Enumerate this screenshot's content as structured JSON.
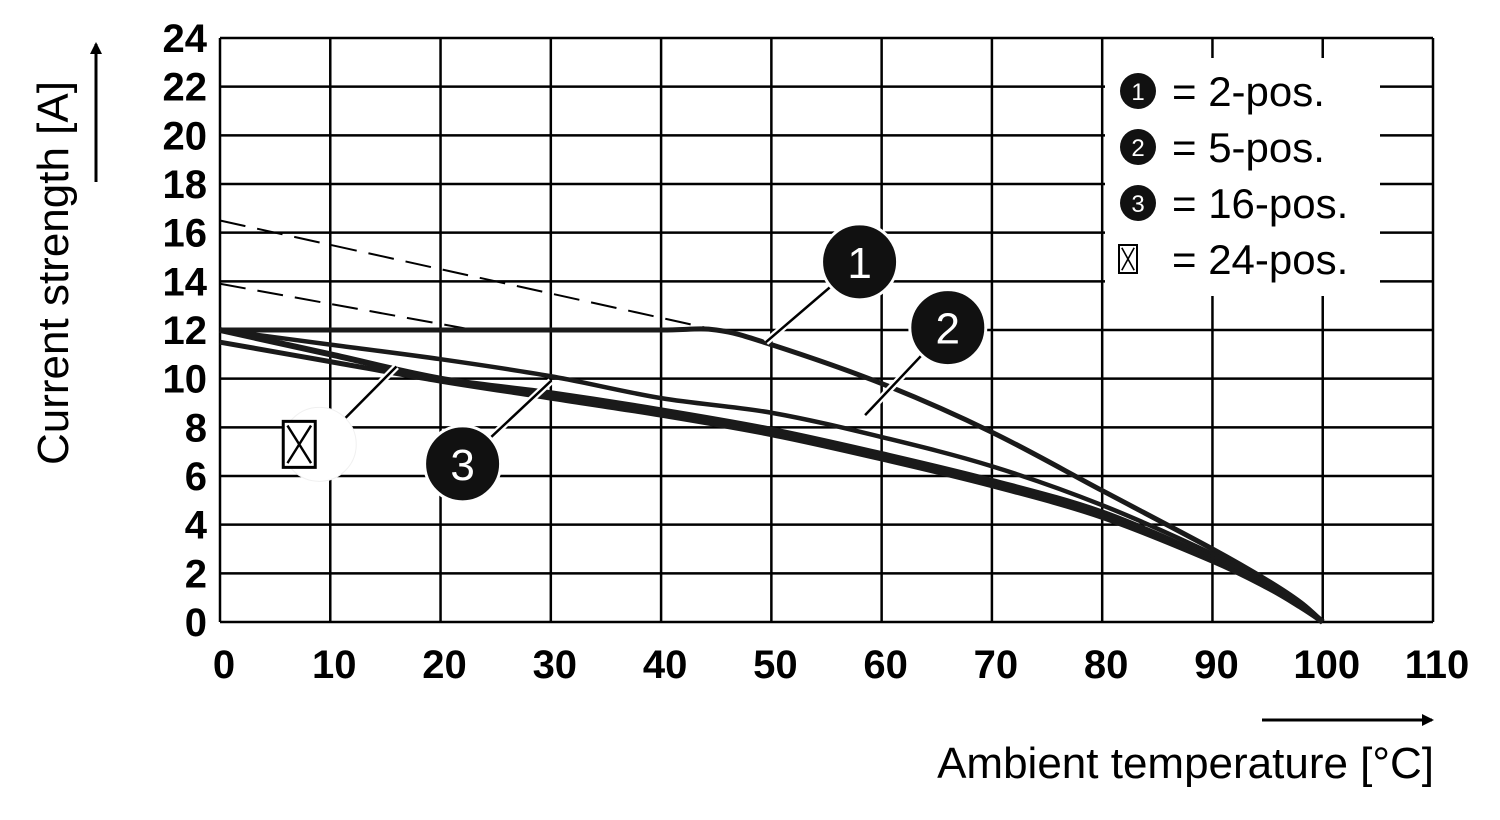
{
  "chart_data": {
    "type": "line",
    "xlabel": "Ambient temperature [°C]",
    "ylabel": "Current strength [A]",
    "xlim": [
      0,
      110
    ],
    "ylim": [
      0,
      24
    ],
    "x_ticks": [
      "0",
      "10",
      "20",
      "30",
      "40",
      "50",
      "60",
      "70",
      "80",
      "90",
      "100",
      "110"
    ],
    "y_ticks": [
      "0",
      "2",
      "4",
      "6",
      "8",
      "10",
      "12",
      "14",
      "16",
      "18",
      "20",
      "22",
      "24"
    ],
    "grid": true,
    "legend_position": "top-right",
    "legend": [
      {
        "marker": "1",
        "text": "= 2-pos."
      },
      {
        "marker": "2",
        "text": "= 5-pos."
      },
      {
        "marker": "3",
        "text": "= 16-pos."
      },
      {
        "marker": "box-x",
        "text": "= 24-pos."
      }
    ],
    "series": [
      {
        "name": "2-pos.",
        "marker": "1",
        "x": [
          0,
          10,
          20,
          30,
          40,
          45,
          50,
          60,
          70,
          80,
          90,
          95,
          98,
          100
        ],
        "y": [
          12,
          12,
          12,
          12,
          12,
          12,
          11.4,
          9.8,
          7.8,
          5.4,
          3.0,
          1.7,
          0.8,
          0
        ],
        "extension_dashed": {
          "x": [
            0,
            45
          ],
          "y": [
            16.5,
            12
          ]
        }
      },
      {
        "name": "5-pos.",
        "marker": "2",
        "x": [
          0,
          10,
          20,
          30,
          40,
          50,
          60,
          70,
          80,
          90,
          95,
          98,
          100
        ],
        "y": [
          12,
          11.4,
          10.8,
          10.1,
          9.2,
          8.6,
          7.6,
          6.4,
          4.8,
          2.8,
          1.6,
          0.8,
          0
        ],
        "extension_dashed": {
          "x": [
            0,
            23
          ],
          "y": [
            13.9,
            12
          ]
        }
      },
      {
        "name": "16-pos.",
        "marker": "3",
        "x": [
          0,
          10,
          20,
          30,
          40,
          50,
          60,
          70,
          80,
          90,
          95,
          98,
          100
        ],
        "y": [
          12,
          11.0,
          10.0,
          9.4,
          8.7,
          7.9,
          6.9,
          5.8,
          4.5,
          2.6,
          1.5,
          0.7,
          0
        ]
      },
      {
        "name": "24-pos.",
        "marker": "box-x",
        "x": [
          0,
          10,
          20,
          30,
          40,
          50,
          60,
          70,
          80,
          90,
          95,
          98,
          100
        ],
        "y": [
          11.5,
          10.7,
          9.9,
          9.2,
          8.5,
          7.7,
          6.7,
          5.6,
          4.3,
          2.5,
          1.4,
          0.6,
          0
        ]
      }
    ],
    "callouts": [
      {
        "label": "1",
        "at": [
          58,
          14.8
        ],
        "line_to": [
          49.5,
          11.5
        ]
      },
      {
        "label": "2",
        "at": [
          66,
          12.1
        ],
        "line_to": [
          58.5,
          8.5
        ]
      },
      {
        "label": "3",
        "at": [
          22,
          6.5
        ],
        "line_to": [
          30,
          9.9
        ]
      },
      {
        "label": "box-x",
        "at": [
          9,
          7.3
        ],
        "line_to": [
          16,
          10.5
        ]
      }
    ]
  }
}
